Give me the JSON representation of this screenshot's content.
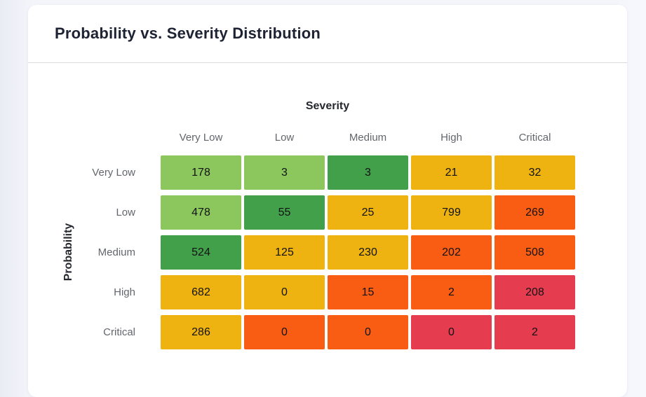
{
  "header": {
    "title": "Probability vs. Severity Distribution"
  },
  "chart_data": {
    "type": "heatmap",
    "title": "Probability vs. Severity Distribution",
    "xlabel": "Severity",
    "ylabel": "Probability",
    "columns": [
      "Very Low",
      "Low",
      "Medium",
      "High",
      "Critical"
    ],
    "rows": [
      "Very Low",
      "Low",
      "Medium",
      "High",
      "Critical"
    ],
    "values": [
      [
        178,
        3,
        3,
        21,
        32
      ],
      [
        478,
        55,
        25,
        799,
        269
      ],
      [
        524,
        125,
        230,
        202,
        508
      ],
      [
        682,
        0,
        15,
        2,
        208
      ],
      [
        286,
        0,
        0,
        0,
        2
      ]
    ],
    "cell_colors": [
      [
        "lightgreen",
        "lightgreen",
        "green",
        "amber",
        "amber"
      ],
      [
        "lightgreen",
        "green",
        "amber",
        "amber",
        "orange"
      ],
      [
        "green",
        "amber",
        "amber",
        "orange",
        "orange"
      ],
      [
        "amber",
        "amber",
        "orange",
        "orange",
        "red"
      ],
      [
        "amber",
        "orange",
        "orange",
        "red",
        "red"
      ]
    ],
    "palette": {
      "lightgreen": "#8CC75E",
      "green": "#42A04A",
      "amber": "#EEB211",
      "orange": "#F95D13",
      "red": "#E63C50"
    },
    "legend_position": "none",
    "grid": false
  },
  "colors": {
    "page_background": "#f4f5fb",
    "card_background": "#ffffff",
    "divider": "#d9dade",
    "title_text": "#1d2333",
    "axis_title_text": "#24272e",
    "tick_label_text": "#63666d",
    "cell_text": "#111213"
  }
}
